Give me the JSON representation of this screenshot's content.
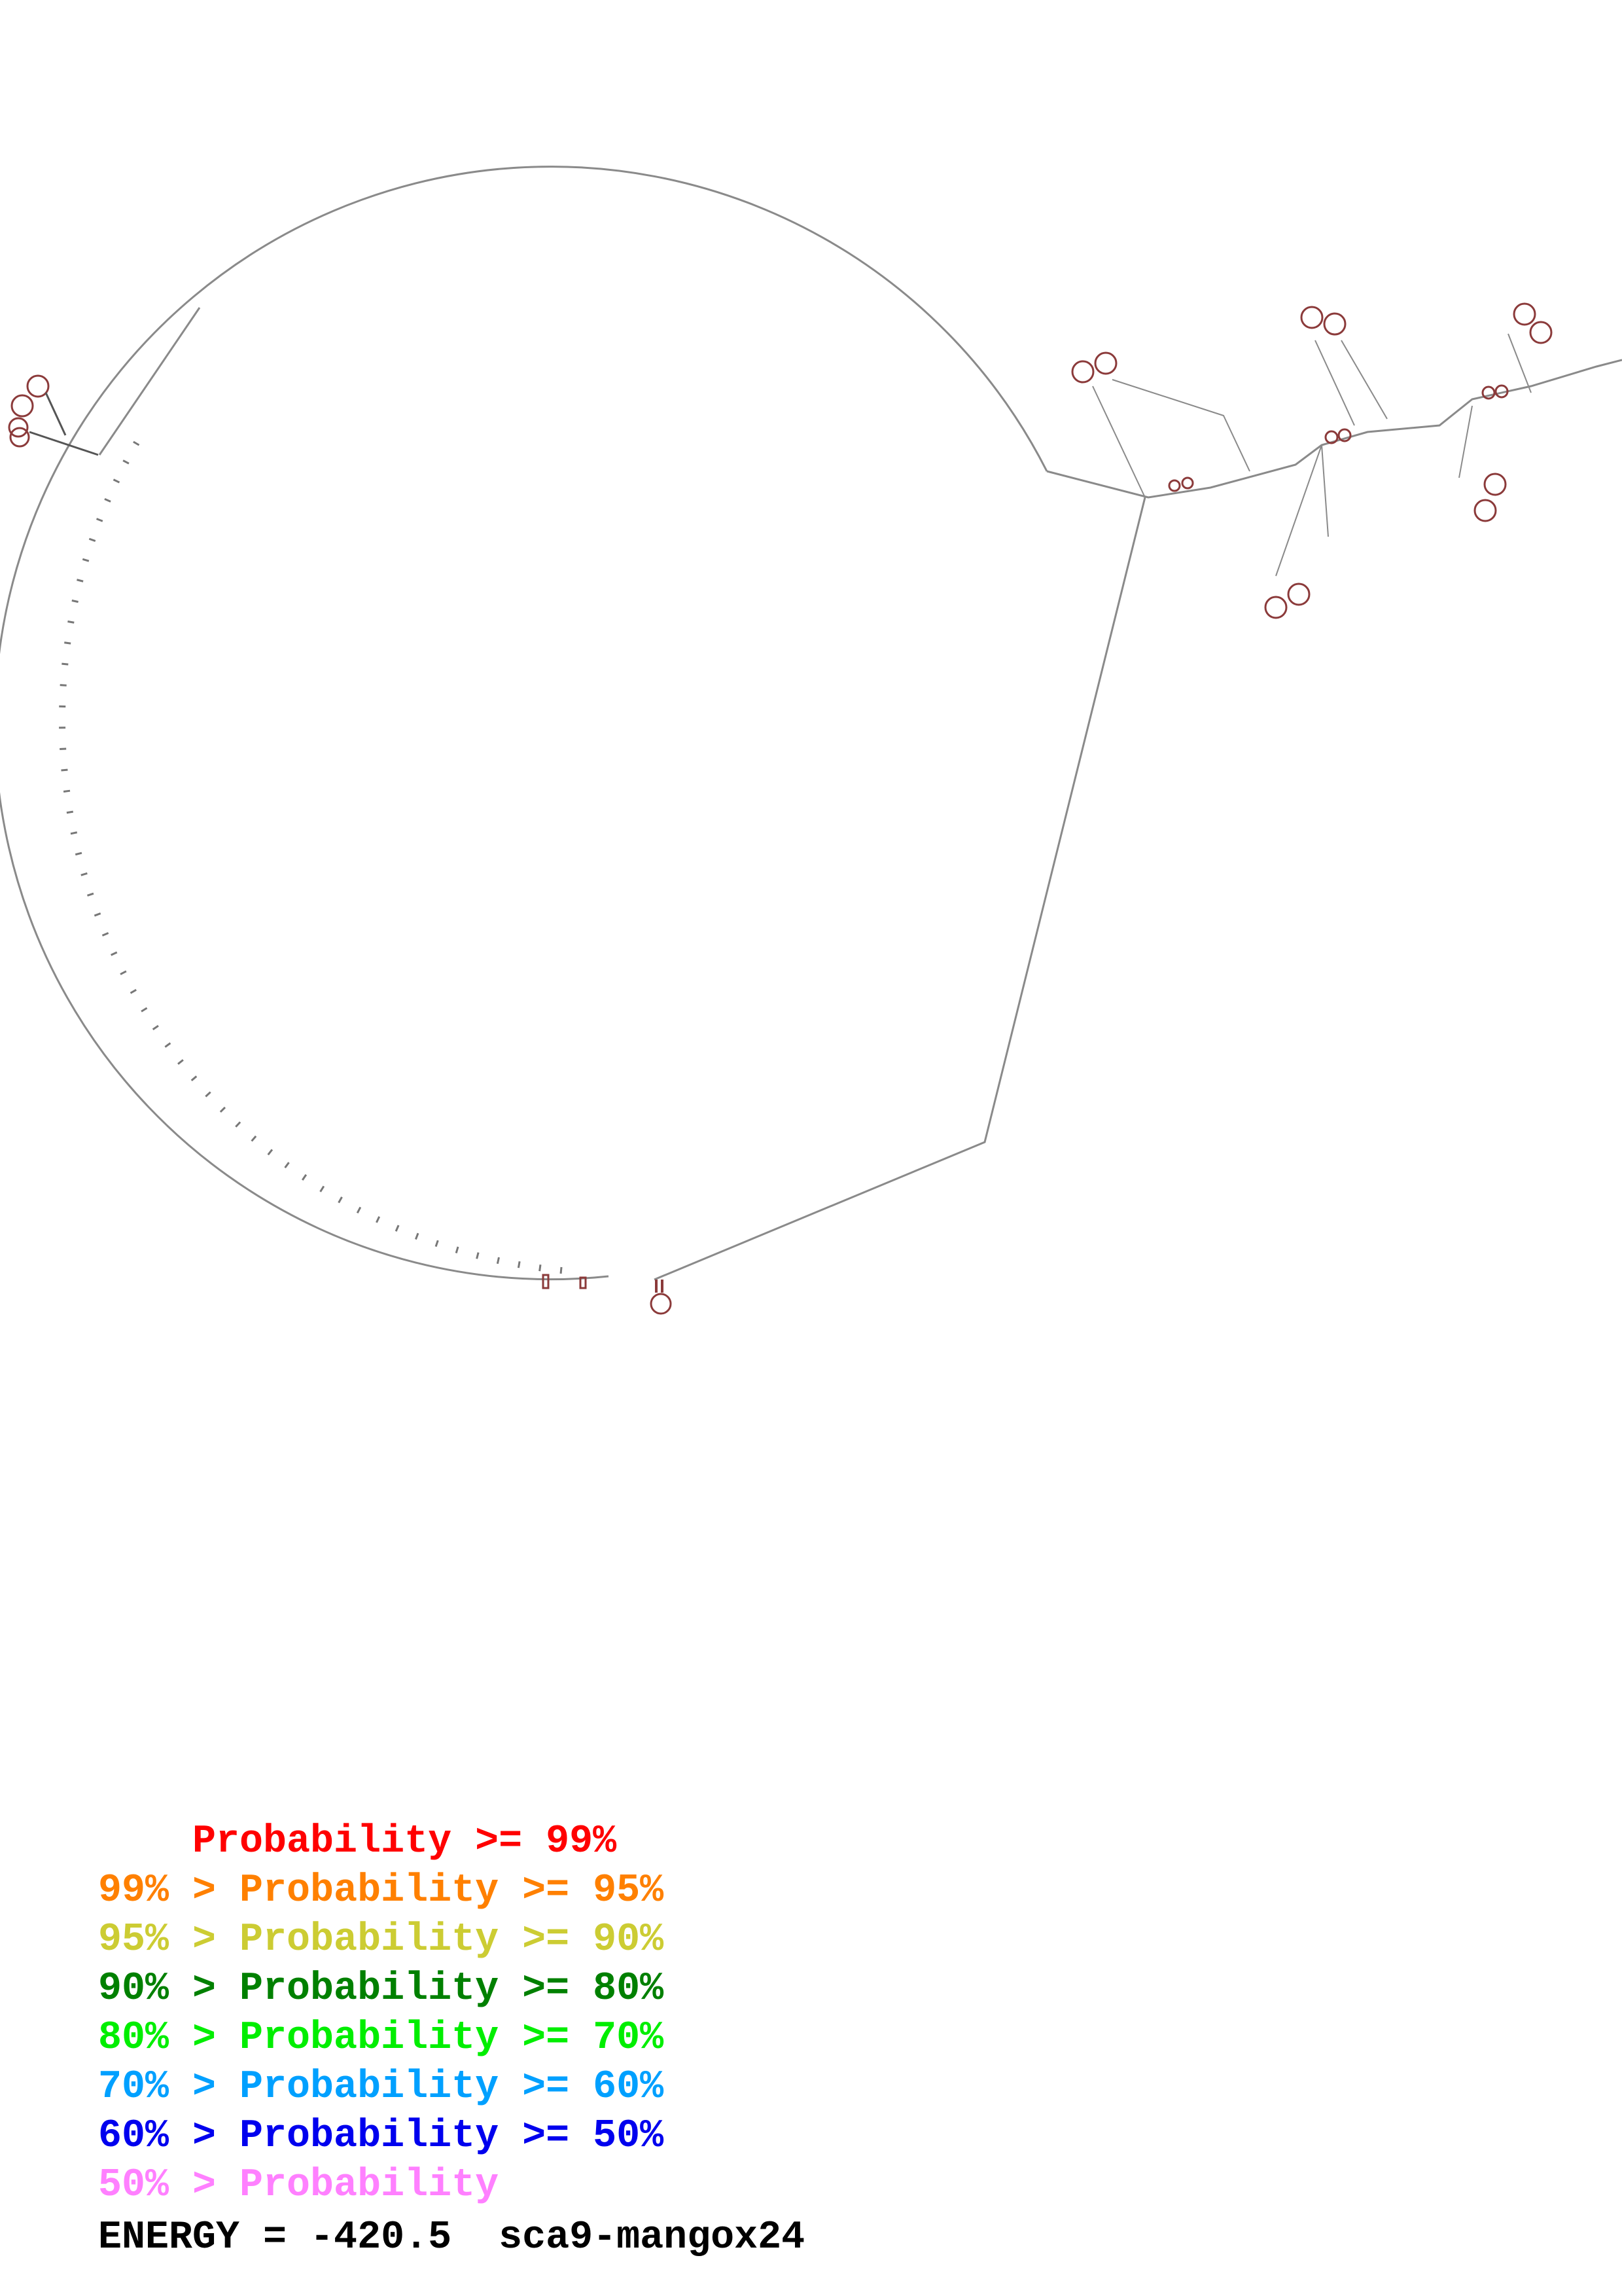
{
  "legend": [
    {
      "prefix": "    ",
      "text": "    Probability >= 99%",
      "color": "#ff0000"
    },
    {
      "prefix": "",
      "text": "99% > Probability >= 95%",
      "color": "#ff8000"
    },
    {
      "prefix": "",
      "text": "95% > Probability >= 90%",
      "color": "#cccc33"
    },
    {
      "prefix": "",
      "text": "90% > Probability >= 80%",
      "color": "#008000"
    },
    {
      "prefix": "",
      "text": "80% > Probability >= 70%",
      "color": "#00ee00"
    },
    {
      "prefix": "",
      "text": "70% > Probability >= 60%",
      "color": "#00a0ff"
    },
    {
      "prefix": "",
      "text": "60% > Probability >= 50%",
      "color": "#0000ee"
    },
    {
      "prefix": "",
      "text": "50% > Probability",
      "color": "#ff80ff"
    }
  ],
  "energy_label": "ENERGY = -420.5  sca9-mangox24",
  "colors": {
    "backbone": "#8a8a8a",
    "pair": "#8b3a3a"
  }
}
